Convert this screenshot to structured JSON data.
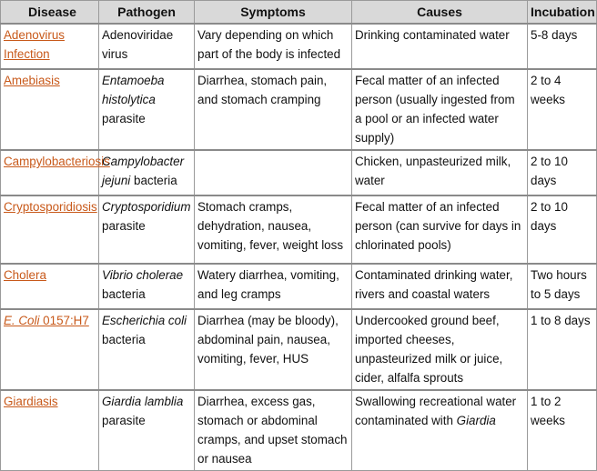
{
  "headers": {
    "disease": "Disease",
    "pathogen": "Pathogen",
    "symptoms": "Symptoms",
    "causes": "Causes",
    "incubation": "Incubation"
  },
  "rows": [
    {
      "disease": "Adenovirus Infection",
      "pathogen_italic": "",
      "pathogen_rest": "Adenoviridae virus",
      "symptoms": "Vary depending on which part of the body is infected",
      "causes_pre": "Drinking contaminated water",
      "causes_italic": "",
      "incubation": "5-8 days"
    },
    {
      "disease": "Amebiasis",
      "pathogen_italic": "Entamoeba histolytica",
      "pathogen_rest": " parasite",
      "symptoms": "Diarrhea, stomach pain, and stomach cramping",
      "causes_pre": "Fecal matter of an infected person (usually ingested from a pool or an infected water supply)",
      "causes_italic": "",
      "incubation": "2 to 4 weeks"
    },
    {
      "disease": "Campylobacteriosis",
      "pathogen_italic": "Campylobacter jejuni",
      "pathogen_rest": " bacteria",
      "symptoms": "",
      "causes_pre": "Chicken, unpasteurized milk, water",
      "causes_italic": "",
      "incubation": "2 to 10 days"
    },
    {
      "disease": "Cryptosporidiosis",
      "pathogen_italic": "Cryptosporidium",
      "pathogen_rest": " parasite",
      "symptoms": "Stomach cramps, dehydration, nausea, vomiting, fever, weight loss",
      "causes_pre": "Fecal matter of an infected person (can survive for days in chlorinated pools)",
      "causes_italic": "",
      "incubation": "2 to 10 days"
    },
    {
      "disease": "Cholera",
      "pathogen_italic": "Vibrio cholerae",
      "pathogen_rest": " bacteria",
      "symptoms": "Watery diarrhea, vomiting, and leg cramps",
      "causes_pre": "Contaminated drinking water, rivers and coastal waters",
      "causes_italic": "",
      "incubation": "Two hours to 5 days"
    },
    {
      "disease_italic": "E. Coli",
      "disease": " 0157:H7",
      "pathogen_italic": "Escherichia coli",
      "pathogen_rest": " bacteria",
      "symptoms": "Diarrhea (may be bloody), abdominal pain, nausea, vomiting, fever, HUS",
      "causes_pre": "Undercooked ground beef, imported cheeses, unpasteurized milk or juice, cider, alfalfa sprouts",
      "causes_italic": "",
      "incubation": "1 to 8 days"
    },
    {
      "disease": "Giardiasis",
      "pathogen_italic": "Giardia lamblia",
      "pathogen_rest": " parasite",
      "symptoms": "Diarrhea, excess gas, stomach or abdominal cramps, and upset stomach or nausea",
      "causes_pre": "Swallowing recreational water contaminated with ",
      "causes_italic": "Giardia",
      "incubation": "1 to 2 weeks"
    }
  ]
}
